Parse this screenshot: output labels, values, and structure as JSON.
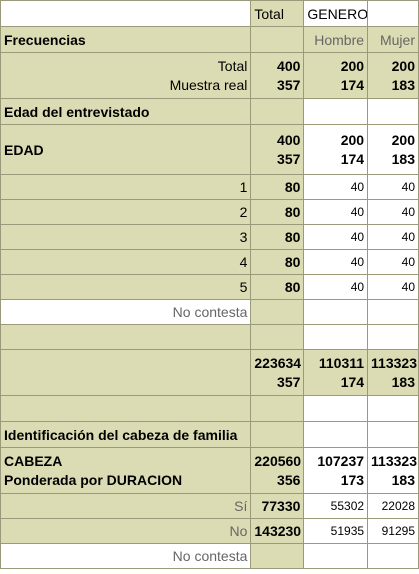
{
  "header": {
    "total": "Total",
    "genero": "GENERO"
  },
  "frecuencias": {
    "label": "Frecuencias",
    "hombre": "Hombre",
    "mujer": "Mujer"
  },
  "totals": {
    "label_total": "Total",
    "label_muestra": "Muestra real",
    "total": [
      "400",
      "357"
    ],
    "hombre": [
      "200",
      "174"
    ],
    "mujer": [
      "200",
      "183"
    ]
  },
  "edad_section": {
    "title": "Edad del entrevistado"
  },
  "edad": {
    "label": "EDAD",
    "total": [
      "400",
      "357"
    ],
    "hombre": [
      "200",
      "174"
    ],
    "mujer": [
      "200",
      "183"
    ]
  },
  "edad_rows": [
    {
      "label": "1",
      "total": "80",
      "hombre": "40",
      "mujer": "40"
    },
    {
      "label": "2",
      "total": "80",
      "hombre": "40",
      "mujer": "40"
    },
    {
      "label": "3",
      "total": "80",
      "hombre": "40",
      "mujer": "40"
    },
    {
      "label": "4",
      "total": "80",
      "hombre": "40",
      "mujer": "40"
    },
    {
      "label": "5",
      "total": "80",
      "hombre": "40",
      "mujer": "40"
    }
  ],
  "no_contesta": "No contesta",
  "sum_block": {
    "total": [
      "223634",
      "357"
    ],
    "hombre": [
      "110311",
      "174"
    ],
    "mujer": [
      "113323",
      "183"
    ]
  },
  "cabeza_section": {
    "title": "Identificación del cabeza de familia"
  },
  "cabeza": {
    "label1": "CABEZA",
    "label2": "Ponderada por DURACION",
    "total": [
      "220560",
      "356"
    ],
    "hombre": [
      "107237",
      "173"
    ],
    "mujer": [
      "113323",
      "183"
    ]
  },
  "cabeza_rows": [
    {
      "label": "Sí",
      "total": "77330",
      "hombre": "55302",
      "mujer": "22028"
    },
    {
      "label": "No",
      "total": "143230",
      "hombre": "51935",
      "mujer": "91295"
    }
  ],
  "no_contesta_2": "No contesta"
}
